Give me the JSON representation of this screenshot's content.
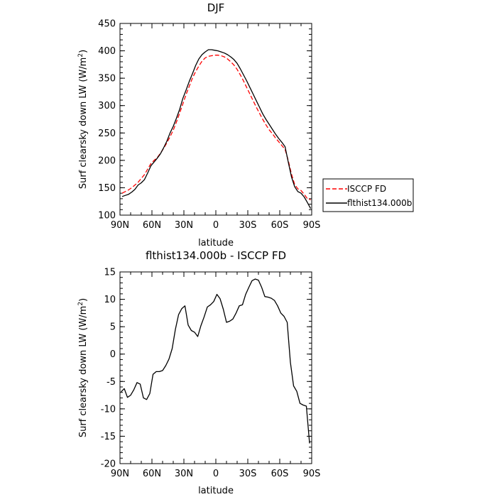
{
  "chart_data": [
    {
      "type": "line",
      "title": "DJF",
      "xlabel": "latitude",
      "ylabel": "Surf clearsky down LW (W/m",
      "ylabel_sup": "2",
      "ylabel_close": ")",
      "xlim": [
        90,
        -90
      ],
      "ylim": [
        100,
        450
      ],
      "xtick_values": [
        90,
        60,
        30,
        0,
        -30,
        -60,
        -90
      ],
      "xtick_labels": [
        "90N",
        "60N",
        "30N",
        "0",
        "30S",
        "60S",
        "90S"
      ],
      "ytick_values": [
        100,
        150,
        200,
        250,
        300,
        350,
        400,
        450
      ],
      "ytick_labels": [
        "100",
        "150",
        "200",
        "250",
        "300",
        "350",
        "400",
        "450"
      ],
      "legend": {
        "position": "right",
        "entries": [
          "ISCCP FD",
          "flthist134.000b"
        ]
      },
      "series": [
        {
          "name": "ISCCP FD",
          "color": "#ff0000",
          "dash": "dashed",
          "x": [
            88,
            85,
            82,
            79,
            76,
            73,
            70,
            67,
            64,
            61,
            58,
            55,
            52,
            49,
            46,
            43,
            40,
            37,
            34,
            31,
            28,
            25,
            22,
            19,
            16,
            13,
            10,
            7,
            4,
            1,
            -2,
            -5,
            -8,
            -11,
            -14,
            -17,
            -20,
            -23,
            -26,
            -29,
            -32,
            -35,
            -38,
            -41,
            -44,
            -47,
            -50,
            -53,
            -56,
            -59,
            -62,
            -65,
            -68,
            -71,
            -74,
            -77,
            -80,
            -83,
            -86,
            -89
          ],
          "y": [
            140,
            143,
            146,
            150,
            155,
            160,
            167,
            174,
            184,
            194,
            200,
            205,
            213,
            222,
            232,
            243,
            255,
            270,
            286,
            303,
            320,
            335,
            350,
            362,
            372,
            381,
            387,
            390,
            391,
            392,
            392,
            391,
            389,
            385,
            380,
            374,
            366,
            356,
            345,
            333,
            321,
            309,
            297,
            286,
            275,
            265,
            256,
            249,
            241,
            234,
            227,
            220,
            200,
            175,
            156,
            148,
            145,
            138,
            130,
            128
          ]
        },
        {
          "name": "flthist134.000b",
          "color": "#000000",
          "dash": "solid",
          "x": [
            88,
            85,
            82,
            79,
            76,
            73,
            70,
            67,
            64,
            61,
            58,
            55,
            52,
            49,
            46,
            43,
            40,
            37,
            34,
            31,
            28,
            25,
            22,
            19,
            16,
            13,
            10,
            7,
            4,
            1,
            -2,
            -5,
            -8,
            -11,
            -14,
            -17,
            -20,
            -23,
            -26,
            -29,
            -32,
            -35,
            -38,
            -41,
            -44,
            -47,
            -50,
            -53,
            -56,
            -59,
            -62,
            -65,
            -68,
            -71,
            -74,
            -77,
            -80,
            -83,
            -86,
            -89
          ],
          "y": [
            134,
            136,
            138,
            142,
            147,
            155,
            159,
            165,
            177,
            190,
            197,
            204,
            212,
            223,
            235,
            250,
            262,
            277,
            293,
            313,
            328,
            344,
            358,
            373,
            385,
            393,
            398,
            402,
            402,
            401,
            400,
            398,
            396,
            393,
            389,
            384,
            377,
            367,
            356,
            345,
            333,
            321,
            309,
            297,
            285,
            275,
            266,
            257,
            248,
            240,
            233,
            225,
            197,
            170,
            152,
            143,
            140,
            133,
            123,
            112
          ]
        }
      ]
    },
    {
      "type": "line",
      "title": "flthist134.000b - ISCCP FD",
      "xlabel": "latitude",
      "ylabel": "Surf clearsky down LW (W/m",
      "ylabel_sup": "2",
      "ylabel_close": ")",
      "xlim": [
        90,
        -90
      ],
      "ylim": [
        -20,
        15
      ],
      "xtick_values": [
        90,
        60,
        30,
        0,
        -30,
        -60,
        -90
      ],
      "xtick_labels": [
        "90N",
        "60N",
        "30N",
        "0",
        "30S",
        "60S",
        "90S"
      ],
      "ytick_values": [
        -20,
        -15,
        -10,
        -5,
        0,
        5,
        10,
        15
      ],
      "ytick_labels": [
        "-20",
        "-15",
        "-10",
        "-5",
        "0",
        "5",
        "10",
        "15"
      ],
      "series": [
        {
          "color": "#000000",
          "dash": "solid",
          "x": [
            89,
            86,
            83,
            80,
            77,
            74,
            71,
            68,
            65,
            62,
            59,
            56,
            53,
            50,
            47,
            44,
            41,
            38,
            35,
            32,
            29,
            26,
            23,
            20,
            17,
            14,
            11,
            8,
            5,
            2,
            -1,
            -4,
            -7,
            -10,
            -13,
            -16,
            -19,
            -22,
            -25,
            -28,
            -31,
            -34,
            -37,
            -40,
            -43,
            -46,
            -49,
            -52,
            -55,
            -58,
            -61,
            -64,
            -67,
            -70,
            -73,
            -76,
            -79,
            -82,
            -85,
            -88
          ],
          "y": [
            -6.9,
            -6.3,
            -7.9,
            -7.5,
            -6.5,
            -5.2,
            -5.5,
            -8.0,
            -8.3,
            -7.2,
            -3.7,
            -3.2,
            -3.2,
            -3.0,
            -2.1,
            -0.9,
            1.0,
            4.5,
            7.2,
            8.3,
            8.8,
            5.3,
            4.3,
            4.0,
            3.2,
            5.2,
            6.8,
            8.6,
            9.0,
            9.6,
            10.9,
            10.1,
            8.2,
            5.8,
            6.0,
            6.4,
            7.5,
            8.8,
            9.0,
            10.9,
            12.2,
            13.4,
            13.7,
            13.5,
            12.2,
            10.5,
            10.4,
            10.2,
            9.8,
            8.8,
            7.5,
            6.9,
            5.8,
            -1.5,
            -5.8,
            -6.8,
            -9.0,
            -9.3,
            -9.5,
            -16.3
          ]
        }
      ]
    }
  ]
}
